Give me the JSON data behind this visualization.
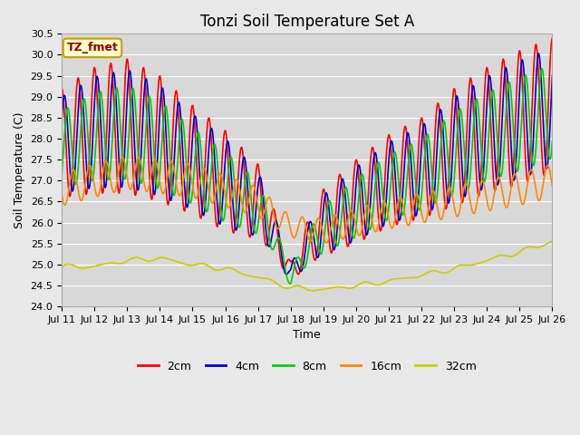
{
  "title": "Tonzi Soil Temperature Set A",
  "xlabel": "Time",
  "ylabel": "Soil Temperature (C)",
  "ylim": [
    24.0,
    30.5
  ],
  "background_color": "#e8e8e8",
  "plot_bg": "#d8d8d8",
  "annotation_text": "TZ_fmet",
  "annotation_bg": "#ffffcc",
  "annotation_border": "#c8a000",
  "annotation_text_color": "#8b0000",
  "legend_labels": [
    "2cm",
    "4cm",
    "8cm",
    "16cm",
    "32cm"
  ],
  "colors": [
    "#ff0000",
    "#0000cc",
    "#00cc00",
    "#ff8800",
    "#cccc00"
  ],
  "line_width": 1.2,
  "grid_color": "#ffffff",
  "tick_labels": [
    "Jul 11",
    "Jul 12",
    "Jul 13",
    "Jul 14",
    "Jul 15",
    "Jul 16",
    "Jul 17",
    "Jul 18",
    "Jul 19",
    "Jul 20",
    "Jul 21",
    "Jul 22",
    "Jul 23",
    "Jul 24",
    "Jul 25",
    "Jul 26"
  ]
}
